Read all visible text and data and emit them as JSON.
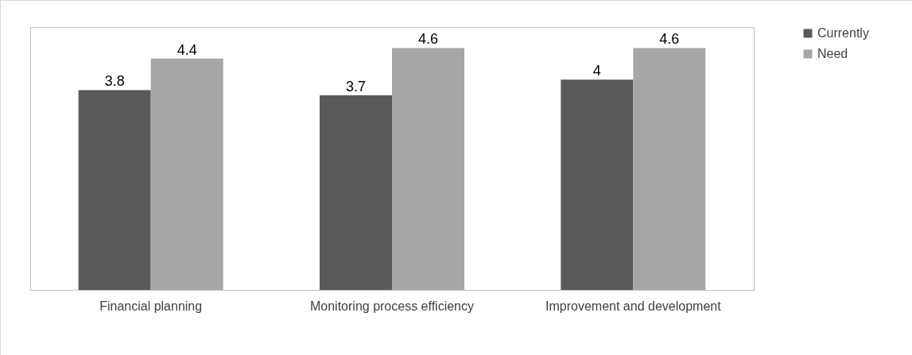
{
  "chart_data": {
    "type": "bar",
    "categories": [
      "Financial planning",
      "Monitoring process efficiency",
      "Improvement and development"
    ],
    "series": [
      {
        "name": "Currently",
        "color": "#595959",
        "values": [
          3.8,
          3.7,
          4
        ]
      },
      {
        "name": "Need",
        "color": "#a6a6a6",
        "values": [
          4.4,
          4.6,
          4.6
        ]
      }
    ],
    "data_labels": true,
    "legend": "right",
    "grid": false
  }
}
